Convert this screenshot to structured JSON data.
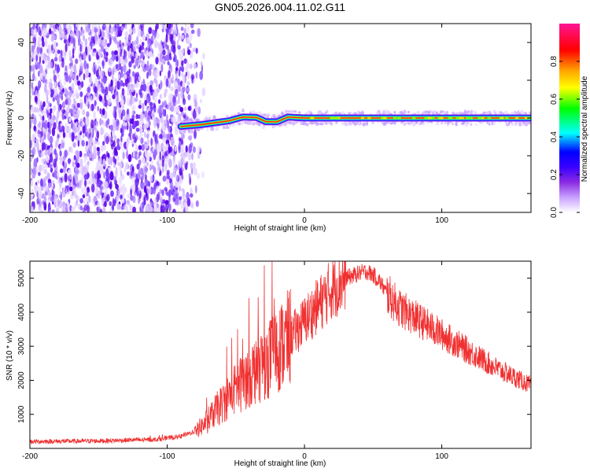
{
  "title": "GN05.2026.004.11.02.G11",
  "chart_data": [
    {
      "type": "heatmap",
      "name": "spectrogram",
      "xlabel": "Height of straight line (km)",
      "ylabel": "Frequency (Hz)",
      "xlim": [
        -200,
        165
      ],
      "ylim": [
        -50,
        50
      ],
      "xticks": [
        "-200",
        "-100",
        "0",
        "100"
      ],
      "xtick_values": [
        -200,
        -100,
        0,
        100
      ],
      "yticks": [
        "40",
        "20",
        "0",
        "-20",
        "-40"
      ],
      "ytick_values": [
        40,
        20,
        0,
        -20,
        -40
      ],
      "noise_region_km": [
        -200,
        -78
      ],
      "signal_track": {
        "start_km": -90,
        "trace": [
          [
            -90,
            -4.5
          ],
          [
            -75,
            -3.5
          ],
          [
            -65,
            -2.5
          ],
          [
            -55,
            -1.5
          ],
          [
            -45,
            0.5
          ],
          [
            -35,
            0.3
          ],
          [
            -28,
            -2.0
          ],
          [
            -20,
            -2.0
          ],
          [
            -12,
            0.5
          ],
          [
            0,
            0.0
          ],
          [
            165,
            0.0
          ]
        ]
      },
      "colorbar": {
        "label": "Normalized spectral amplitude",
        "range": [
          0,
          1
        ],
        "ticks": [
          "0.0",
          "0.2",
          "0.4",
          "0.6",
          "0.8"
        ],
        "tick_values": [
          0.0,
          0.2,
          0.4,
          0.6,
          0.8
        ],
        "colors": [
          "#ffffff",
          "#c8a0ff",
          "#8a2be2",
          "#3a00ff",
          "#0000ff",
          "#00ffff",
          "#00ff00",
          "#ffff00",
          "#ffa500",
          "#ff0000",
          "#ff1493"
        ]
      }
    },
    {
      "type": "line",
      "name": "snr",
      "xlabel": "Height of straight line (km)",
      "ylabel": "SNR (10 * v/v)",
      "xlim": [
        -200,
        165
      ],
      "ylim": [
        0,
        5500
      ],
      "xticks": [
        "-200",
        "-100",
        "0",
        "100"
      ],
      "xtick_values": [
        -200,
        -100,
        0,
        100
      ],
      "yticks": [
        "1000",
        "2000",
        "3000",
        "4000",
        "5000"
      ],
      "ytick_values": [
        1000,
        2000,
        3000,
        4000,
        5000
      ],
      "color": "#f03030",
      "envelope": {
        "x": [
          -200,
          -150,
          -110,
          -90,
          -80,
          -70,
          -65,
          -60,
          -55,
          -50,
          -45,
          -40,
          -35,
          -30,
          -25,
          -20,
          -15,
          -10,
          -5,
          0,
          10,
          20,
          30,
          40,
          45,
          50,
          55,
          60,
          70,
          80,
          90,
          100,
          110,
          120,
          130,
          140,
          150,
          160,
          165
        ],
        "y": [
          200,
          220,
          260,
          350,
          500,
          800,
          1100,
          1300,
          1550,
          1750,
          1950,
          2150,
          2350,
          2500,
          2700,
          2900,
          3100,
          3300,
          3500,
          3750,
          4200,
          4700,
          5000,
          5150,
          5200,
          5100,
          4900,
          4550,
          4100,
          3850,
          3600,
          3350,
          3100,
          2850,
          2600,
          2350,
          2150,
          1950,
          1850
        ]
      }
    }
  ]
}
